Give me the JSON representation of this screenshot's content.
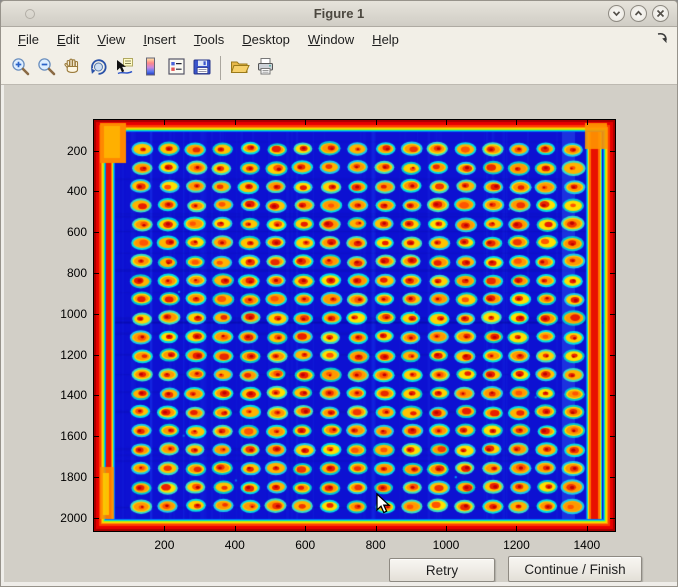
{
  "window": {
    "title": "Figure 1",
    "controls": [
      {
        "name": "minimize-button",
        "icon": "chevron-down-icon"
      },
      {
        "name": "maximize-button",
        "icon": "chevron-up-icon"
      },
      {
        "name": "close-button",
        "icon": "close-icon"
      }
    ]
  },
  "menu": {
    "items": [
      "File",
      "Edit",
      "View",
      "Insert",
      "Tools",
      "Desktop",
      "Window",
      "Help"
    ],
    "dock_icon": "dock-figure-icon"
  },
  "toolbar": {
    "items": [
      "zoom-in-icon",
      "zoom-out-icon",
      "pan-hand-icon",
      "rotate-3d-icon",
      "data-cursor-icon",
      "colorbar-icon",
      "legend-icon",
      "save-icon",
      "separator",
      "open-folder-icon",
      "print-icon"
    ]
  },
  "action_buttons": {
    "retry_label": "Retry",
    "continue_label": "Continue / Finish"
  },
  "chart_data": {
    "type": "heatmap",
    "title": "",
    "xlabel": "",
    "ylabel": "",
    "x_ticks": [
      200,
      400,
      600,
      800,
      1000,
      1200,
      1400
    ],
    "y_ticks": [
      200,
      400,
      600,
      800,
      1000,
      1200,
      1400,
      1600,
      1800,
      2000
    ],
    "xlim": [
      0,
      1480
    ],
    "ylim": [
      50,
      2065
    ],
    "y_axis_direction": "reverse",
    "colormap": "jet",
    "legend_position": "none",
    "grid_lines": "off",
    "content": "False-color (jet colormap) scan of a spotted plate / microarray: deep blue field with a hot red-orange frame around the edges, vertical red bands near the left and right borders, and a regular grid of elliptical spots, each with a cyan halo, yellow-orange ring and red core",
    "grid": {
      "rows": 20,
      "cols": 17
    },
    "render": {
      "seed": 12,
      "colors": {
        "background": "#0d11d2",
        "streak": "#2a52ff",
        "spot_halo": [
          "#00e0e6",
          "#19cdeb",
          "#00c9d2",
          "#38e0c8"
        ],
        "spot_ring": [
          "#ffe000",
          "#ffd200",
          "#ffc400",
          "#ffb400"
        ],
        "spot_core": [
          "#f03400",
          "#e81d00",
          "#ff5400",
          "#e82800"
        ],
        "spot_speck": "#bf0000",
        "band_core": "#e81000",
        "frame": [
          "#a80000",
          "#e80000",
          "#ff3c00",
          "#ff8c00",
          "#ffd800",
          "#b8f000",
          "#00e0d0",
          "#0070ff"
        ]
      }
    }
  }
}
